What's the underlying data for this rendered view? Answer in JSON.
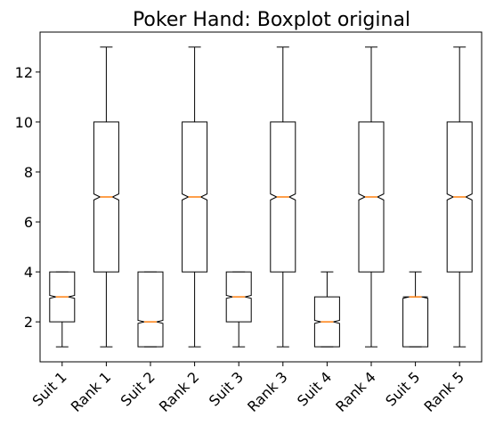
{
  "chart_data": {
    "type": "boxplot",
    "title": "Poker Hand: Boxplot original",
    "xlabel": "",
    "ylabel": "",
    "ylim": [
      0.4,
      13.6
    ],
    "yticks": [
      2,
      4,
      6,
      8,
      10,
      12
    ],
    "notched": true,
    "grid": false,
    "categories": [
      "Suit 1",
      "Rank 1",
      "Suit 2",
      "Rank 2",
      "Suit 3",
      "Rank 3",
      "Suit 4",
      "Rank 4",
      "Suit 5",
      "Rank 5"
    ],
    "boxes": [
      {
        "whisker_low": 1,
        "q1": 2,
        "median": 3,
        "q3": 4,
        "whisker_high": 4,
        "notch_low": 2.94,
        "notch_high": 3.06
      },
      {
        "whisker_low": 1,
        "q1": 4,
        "median": 7,
        "q3": 10,
        "whisker_high": 13,
        "notch_low": 6.88,
        "notch_high": 7.12
      },
      {
        "whisker_low": 1,
        "q1": 1,
        "median": 2,
        "q3": 4,
        "whisker_high": 4,
        "notch_low": 1.94,
        "notch_high": 2.06
      },
      {
        "whisker_low": 1,
        "q1": 4,
        "median": 7,
        "q3": 10,
        "whisker_high": 13,
        "notch_low": 6.88,
        "notch_high": 7.12
      },
      {
        "whisker_low": 1,
        "q1": 2,
        "median": 3,
        "q3": 4,
        "whisker_high": 4,
        "notch_low": 2.94,
        "notch_high": 3.06
      },
      {
        "whisker_low": 1,
        "q1": 4,
        "median": 7,
        "q3": 10,
        "whisker_high": 13,
        "notch_low": 6.88,
        "notch_high": 7.12
      },
      {
        "whisker_low": 1,
        "q1": 1,
        "median": 2,
        "q3": 3,
        "whisker_high": 4,
        "notch_low": 1.94,
        "notch_high": 2.06
      },
      {
        "whisker_low": 1,
        "q1": 4,
        "median": 7,
        "q3": 10,
        "whisker_high": 13,
        "notch_low": 6.88,
        "notch_high": 7.12
      },
      {
        "whisker_low": 1,
        "q1": 1,
        "median": 3,
        "q3": 3,
        "whisker_high": 4,
        "notch_low": 2.94,
        "notch_high": 3.06
      },
      {
        "whisker_low": 1,
        "q1": 4,
        "median": 7,
        "q3": 10,
        "whisker_high": 13,
        "notch_low": 6.88,
        "notch_high": 7.12
      }
    ],
    "colors": {
      "box": "#000000",
      "median": "#ff7f0e"
    }
  }
}
